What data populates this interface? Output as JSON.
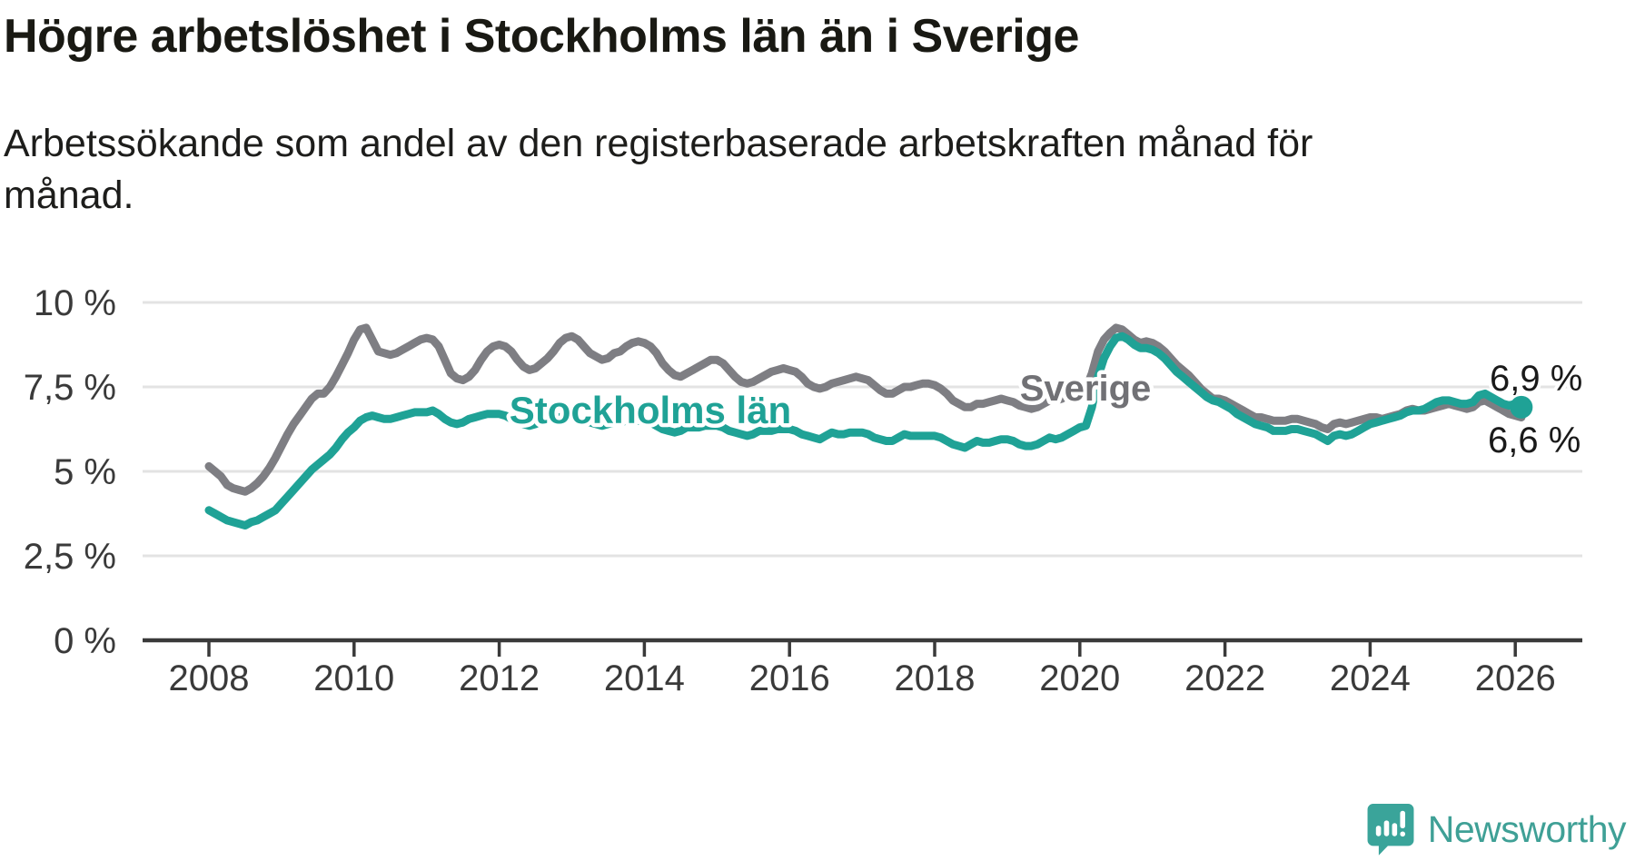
{
  "header": {
    "title": "Högre arbetslöshet i Stockholms län än i Sverige",
    "subtitle": "Arbetssökande som andel av den registerbaserade arbetskraften månad för månad."
  },
  "footer": {
    "brand": "Newsworthy"
  },
  "colors": {
    "stockholm": "#1fa296",
    "sverige": "#7e7e83",
    "grid": "#e3e3e3",
    "axis": "#3a3a3a",
    "tick_text": "#3a3a3a",
    "value_label": "#1a1a1a",
    "logo": "#3fa096"
  },
  "chart_data": {
    "type": "line",
    "title": "Högre arbetslöshet i Stockholms län än i Sverige",
    "subtitle": "Arbetssökande som andel av den registerbaserade arbetskraften månad för månad.",
    "unit": "%",
    "x_start": "2008-01",
    "x_end": "2026-02",
    "points_per_year": 12,
    "ylim": [
      0,
      10
    ],
    "grid": true,
    "y_ticks": [
      {
        "value": 0,
        "label": "0 %"
      },
      {
        "value": 2.5,
        "label": "2,5 %"
      },
      {
        "value": 5,
        "label": "5 %"
      },
      {
        "value": 7.5,
        "label": "7,5 %"
      },
      {
        "value": 10,
        "label": "10 %"
      }
    ],
    "x_ticks": [
      "2008",
      "2010",
      "2012",
      "2014",
      "2016",
      "2018",
      "2020",
      "2022",
      "2024",
      "2026"
    ],
    "series": [
      {
        "name": "Sverige",
        "color": "#7e7e83",
        "end_label": "6,6 %",
        "end_dot": false,
        "values": [
          5.15,
          5.0,
          4.85,
          4.6,
          4.5,
          4.45,
          4.4,
          4.5,
          4.65,
          4.85,
          5.1,
          5.4,
          5.75,
          6.1,
          6.4,
          6.65,
          6.9,
          7.15,
          7.3,
          7.3,
          7.5,
          7.8,
          8.15,
          8.5,
          8.9,
          9.2,
          9.25,
          8.9,
          8.55,
          8.5,
          8.45,
          8.5,
          8.6,
          8.7,
          8.8,
          8.9,
          8.95,
          8.9,
          8.7,
          8.3,
          7.9,
          7.75,
          7.7,
          7.8,
          8.0,
          8.3,
          8.55,
          8.7,
          8.75,
          8.7,
          8.55,
          8.3,
          8.1,
          8.0,
          8.05,
          8.2,
          8.35,
          8.55,
          8.8,
          8.95,
          9.0,
          8.9,
          8.7,
          8.5,
          8.4,
          8.3,
          8.35,
          8.5,
          8.55,
          8.7,
          8.8,
          8.85,
          8.8,
          8.7,
          8.5,
          8.2,
          8.0,
          7.85,
          7.8,
          7.9,
          8.0,
          8.1,
          8.2,
          8.3,
          8.3,
          8.2,
          8.0,
          7.8,
          7.65,
          7.6,
          7.65,
          7.75,
          7.85,
          7.95,
          8.0,
          8.05,
          8.0,
          7.95,
          7.8,
          7.6,
          7.5,
          7.45,
          7.5,
          7.6,
          7.65,
          7.7,
          7.75,
          7.8,
          7.75,
          7.7,
          7.55,
          7.4,
          7.3,
          7.3,
          7.4,
          7.5,
          7.5,
          7.55,
          7.6,
          7.6,
          7.55,
          7.45,
          7.3,
          7.1,
          7.0,
          6.9,
          6.9,
          7.0,
          7.0,
          7.05,
          7.1,
          7.15,
          7.1,
          7.05,
          6.95,
          6.9,
          6.85,
          6.9,
          7.0,
          7.1,
          7.1,
          7.15,
          7.25,
          7.35,
          7.4,
          7.45,
          7.9,
          8.55,
          8.9,
          9.1,
          9.25,
          9.2,
          9.05,
          8.9,
          8.8,
          8.85,
          8.8,
          8.7,
          8.55,
          8.35,
          8.15,
          8.0,
          7.85,
          7.65,
          7.45,
          7.3,
          7.15,
          7.15,
          7.1,
          7.0,
          6.9,
          6.8,
          6.7,
          6.6,
          6.6,
          6.55,
          6.5,
          6.5,
          6.5,
          6.55,
          6.55,
          6.5,
          6.45,
          6.4,
          6.3,
          6.25,
          6.4,
          6.45,
          6.4,
          6.45,
          6.5,
          6.55,
          6.6,
          6.6,
          6.55,
          6.6,
          6.65,
          6.7,
          6.8,
          6.85,
          6.8,
          6.8,
          6.85,
          6.9,
          6.95,
          7.0,
          6.95,
          6.9,
          6.85,
          6.9,
          7.05,
          7.1,
          7.0,
          6.9,
          6.8,
          6.7,
          6.65,
          6.6
        ]
      },
      {
        "name": "Stockholms län",
        "color": "#1fa296",
        "end_label": "6,9 %",
        "end_dot": true,
        "values": [
          3.85,
          3.75,
          3.65,
          3.55,
          3.5,
          3.45,
          3.4,
          3.5,
          3.55,
          3.65,
          3.75,
          3.85,
          4.05,
          4.25,
          4.45,
          4.65,
          4.85,
          5.05,
          5.2,
          5.35,
          5.5,
          5.7,
          5.95,
          6.15,
          6.3,
          6.5,
          6.6,
          6.65,
          6.6,
          6.55,
          6.55,
          6.6,
          6.65,
          6.7,
          6.75,
          6.75,
          6.75,
          6.8,
          6.7,
          6.55,
          6.45,
          6.4,
          6.45,
          6.55,
          6.6,
          6.65,
          6.7,
          6.7,
          6.7,
          6.65,
          6.55,
          6.45,
          6.4,
          6.35,
          6.4,
          6.5,
          6.5,
          6.55,
          6.6,
          6.65,
          6.65,
          6.6,
          6.5,
          6.45,
          6.4,
          6.35,
          6.4,
          6.45,
          6.45,
          6.5,
          6.5,
          6.5,
          6.5,
          6.45,
          6.35,
          6.25,
          6.2,
          6.15,
          6.2,
          6.3,
          6.3,
          6.3,
          6.35,
          6.35,
          6.35,
          6.3,
          6.2,
          6.15,
          6.1,
          6.05,
          6.1,
          6.2,
          6.2,
          6.2,
          6.25,
          6.25,
          6.25,
          6.2,
          6.1,
          6.05,
          6.0,
          5.95,
          6.05,
          6.15,
          6.1,
          6.1,
          6.15,
          6.15,
          6.15,
          6.1,
          6.0,
          5.95,
          5.9,
          5.9,
          6.0,
          6.1,
          6.05,
          6.05,
          6.05,
          6.05,
          6.05,
          6.0,
          5.9,
          5.8,
          5.75,
          5.7,
          5.8,
          5.9,
          5.85,
          5.85,
          5.9,
          5.95,
          5.95,
          5.9,
          5.8,
          5.75,
          5.75,
          5.8,
          5.9,
          6.0,
          5.95,
          6.0,
          6.1,
          6.2,
          6.3,
          6.35,
          6.9,
          7.8,
          8.35,
          8.7,
          8.95,
          9.0,
          8.9,
          8.75,
          8.65,
          8.65,
          8.6,
          8.5,
          8.35,
          8.15,
          7.95,
          7.8,
          7.65,
          7.5,
          7.35,
          7.2,
          7.1,
          7.05,
          6.95,
          6.85,
          6.7,
          6.6,
          6.5,
          6.4,
          6.35,
          6.3,
          6.2,
          6.2,
          6.2,
          6.25,
          6.25,
          6.2,
          6.15,
          6.1,
          6.0,
          5.9,
          6.05,
          6.1,
          6.05,
          6.1,
          6.2,
          6.3,
          6.4,
          6.45,
          6.5,
          6.55,
          6.6,
          6.65,
          6.75,
          6.8,
          6.8,
          6.85,
          6.95,
          7.05,
          7.1,
          7.1,
          7.05,
          7.0,
          7.0,
          7.05,
          7.25,
          7.3,
          7.2,
          7.1,
          7.0,
          6.95,
          7.0,
          6.9
        ]
      }
    ],
    "annotations": [
      {
        "text": "Sverige",
        "series": "Sverige"
      },
      {
        "text": "Stockholms län",
        "series": "Stockholms län"
      }
    ],
    "legend_position": "inline-labels"
  }
}
